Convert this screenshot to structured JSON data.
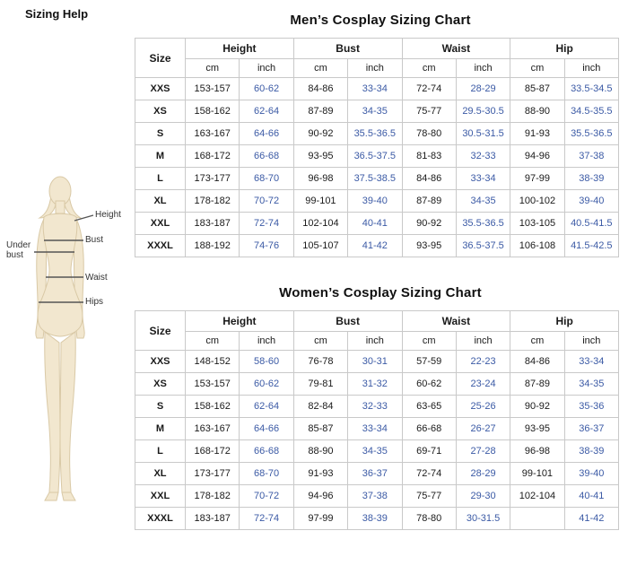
{
  "page": {
    "heading": "Sizing Help"
  },
  "figure": {
    "fill_color": "#f2e7cf",
    "labels": {
      "height": "Height",
      "bust": "Bust",
      "under_bust": "Under bust",
      "waist": "Waist",
      "hips": "Hips"
    }
  },
  "colors": {
    "inch_values": "#3b5aa5",
    "cm_values": "#1a1a1a",
    "table_border": "#c9c9c9"
  },
  "tables": [
    {
      "title": "Men’s Cosplay Sizing Chart",
      "size_header": "Size",
      "col_groups": [
        "Height",
        "Bust",
        "Waist",
        "Hip"
      ],
      "sub_headers": [
        "cm",
        "inch"
      ],
      "rows": [
        {
          "size": "XXS",
          "values": [
            "153-157",
            "60-62",
            "84-86",
            "33-34",
            "72-74",
            "28-29",
            "85-87",
            "33.5-34.5"
          ]
        },
        {
          "size": "XS",
          "values": [
            "158-162",
            "62-64",
            "87-89",
            "34-35",
            "75-77",
            "29.5-30.5",
            "88-90",
            "34.5-35.5"
          ]
        },
        {
          "size": "S",
          "values": [
            "163-167",
            "64-66",
            "90-92",
            "35.5-36.5",
            "78-80",
            "30.5-31.5",
            "91-93",
            "35.5-36.5"
          ]
        },
        {
          "size": "M",
          "values": [
            "168-172",
            "66-68",
            "93-95",
            "36.5-37.5",
            "81-83",
            "32-33",
            "94-96",
            "37-38"
          ]
        },
        {
          "size": "L",
          "values": [
            "173-177",
            "68-70",
            "96-98",
            "37.5-38.5",
            "84-86",
            "33-34",
            "97-99",
            "38-39"
          ]
        },
        {
          "size": "XL",
          "values": [
            "178-182",
            "70-72",
            "99-101",
            "39-40",
            "87-89",
            "34-35",
            "100-102",
            "39-40"
          ]
        },
        {
          "size": "XXL",
          "values": [
            "183-187",
            "72-74",
            "102-104",
            "40-41",
            "90-92",
            "35.5-36.5",
            "103-105",
            "40.5-41.5"
          ]
        },
        {
          "size": "XXXL",
          "values": [
            "188-192",
            "74-76",
            "105-107",
            "41-42",
            "93-95",
            "36.5-37.5",
            "106-108",
            "41.5-42.5"
          ]
        }
      ]
    },
    {
      "title": "Women’s  Cosplay Sizing Chart",
      "size_header": "Size",
      "col_groups": [
        "Height",
        "Bust",
        "Waist",
        "Hip"
      ],
      "sub_headers": [
        "cm",
        "inch"
      ],
      "rows": [
        {
          "size": "XXS",
          "values": [
            "148-152",
            "58-60",
            "76-78",
            "30-31",
            "57-59",
            "22-23",
            "84-86",
            "33-34"
          ]
        },
        {
          "size": "XS",
          "values": [
            "153-157",
            "60-62",
            "79-81",
            "31-32",
            "60-62",
            "23-24",
            "87-89",
            "34-35"
          ]
        },
        {
          "size": "S",
          "values": [
            "158-162",
            "62-64",
            "82-84",
            "32-33",
            "63-65",
            "25-26",
            "90-92",
            "35-36"
          ]
        },
        {
          "size": "M",
          "values": [
            "163-167",
            "64-66",
            "85-87",
            "33-34",
            "66-68",
            "26-27",
            "93-95",
            "36-37"
          ]
        },
        {
          "size": "L",
          "values": [
            "168-172",
            "66-68",
            "88-90",
            "34-35",
            "69-71",
            "27-28",
            "96-98",
            "38-39"
          ]
        },
        {
          "size": "XL",
          "values": [
            "173-177",
            "68-70",
            "91-93",
            "36-37",
            "72-74",
            "28-29",
            "99-101",
            "39-40"
          ]
        },
        {
          "size": "XXL",
          "values": [
            "178-182",
            "70-72",
            "94-96",
            "37-38",
            "75-77",
            "29-30",
            "102-104",
            "40-41"
          ]
        },
        {
          "size": "XXXL",
          "values": [
            "183-187",
            "72-74",
            "97-99",
            "38-39",
            "78-80",
            "30-31.5",
            "",
            "41-42"
          ]
        }
      ]
    }
  ]
}
